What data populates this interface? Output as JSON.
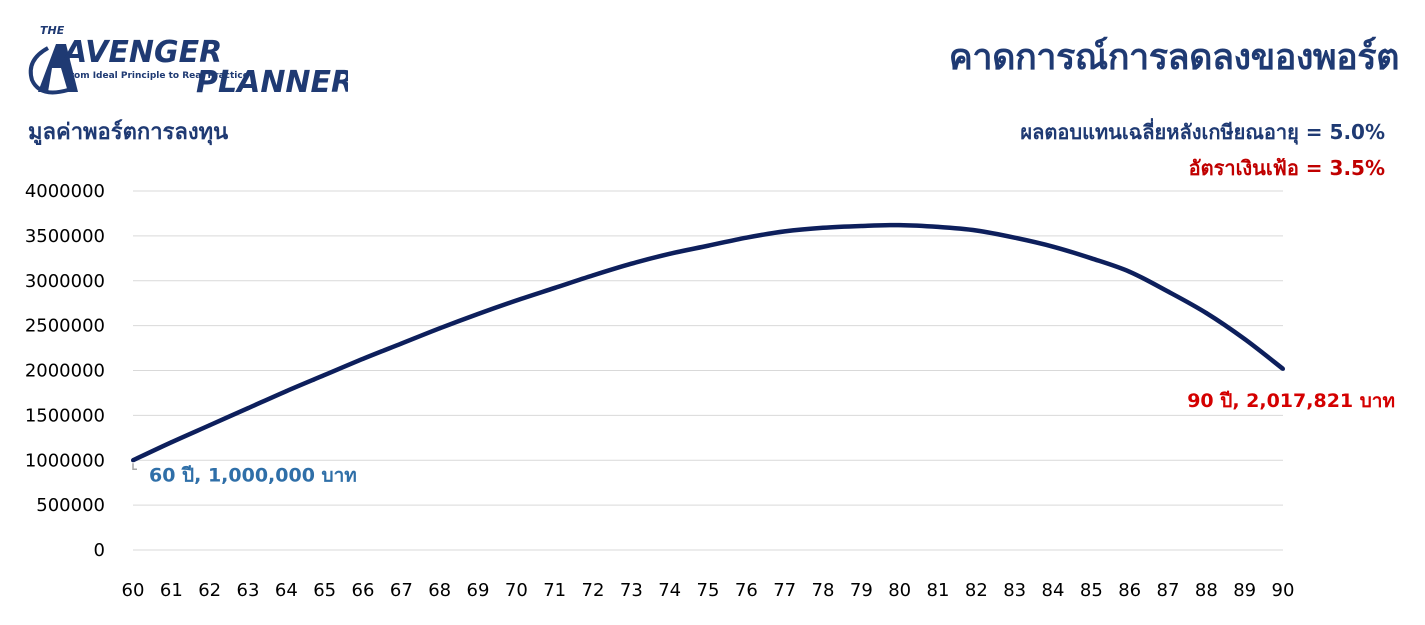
{
  "logo": {
    "the": "THE",
    "avenger": "AVENGER",
    "planner": "PLANNER",
    "tagline": "From Ideal Principle to Real Practice"
  },
  "header": {
    "title": "คาดการณ์การลดลงของพอร์ต",
    "ylabel": "มูลค่าพอร์ตการลงทุน",
    "return_line": "ผลตอบแทนเฉลี่ยหลังเกษียณอายุ = 5.0%",
    "inflation_line": "อัตราเงินเฟ้อ = 3.5%"
  },
  "chart_data": {
    "type": "line",
    "title": "คาดการณ์การลดลงของพอร์ต",
    "xlabel": "",
    "ylabel": "มูลค่าพอร์ตการลงทุน",
    "x": [
      60,
      61,
      62,
      63,
      64,
      65,
      66,
      67,
      68,
      69,
      70,
      71,
      72,
      73,
      74,
      75,
      76,
      77,
      78,
      79,
      80,
      81,
      82,
      83,
      84,
      85,
      86,
      87,
      88,
      89,
      90
    ],
    "y_ticks": [
      0,
      500000,
      1000000,
      1500000,
      2000000,
      2500000,
      3000000,
      3500000,
      4000000
    ],
    "ylim": [
      0,
      4000000
    ],
    "grid": true,
    "color": "#0d1f5c",
    "series": [
      {
        "values": [
          1000000,
          1200000,
          1390000,
          1580000,
          1770000,
          1950000,
          2130000,
          2300000,
          2470000,
          2630000,
          2780000,
          2920000,
          3060000,
          3190000,
          3300000,
          3390000,
          3480000,
          3550000,
          3590000,
          3610000,
          3620000,
          3600000,
          3560000,
          3480000,
          3380000,
          3250000,
          3100000,
          2880000,
          2640000,
          2350000,
          2017821
        ]
      }
    ],
    "annotations": {
      "start_label": "60 ปี, 1,000,000 บาท",
      "end_label": "90 ปี, 2,017,821 บาท"
    }
  }
}
